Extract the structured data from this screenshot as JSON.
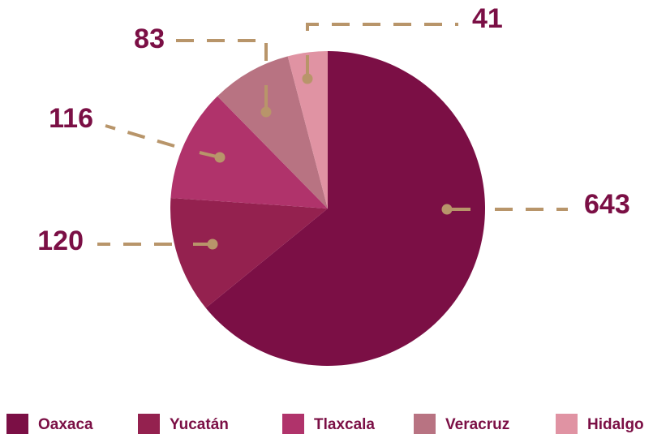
{
  "chart_data": {
    "type": "pie",
    "categories": [
      "Oaxaca",
      "Yucatán",
      "Tlaxcala",
      "Veracruz",
      "Hidalgo"
    ],
    "values": [
      643,
      120,
      116,
      83,
      41
    ],
    "colors": [
      "#7b0f45",
      "#94214f",
      "#b0336b",
      "#b87382",
      "#e093a3"
    ],
    "leader_color": "#b8956a",
    "legend": "bottom"
  }
}
